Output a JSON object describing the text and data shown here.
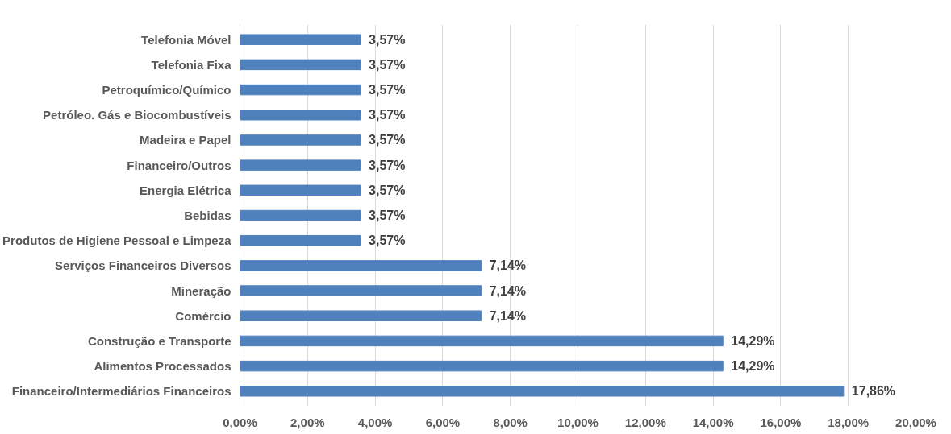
{
  "chart_data": {
    "type": "bar",
    "orientation": "horizontal",
    "categories": [
      "Telefonia Móvel",
      "Telefonia Fixa",
      "Petroquímico/Químico",
      "Petróleo. Gás e Biocombustíveis",
      "Madeira e Papel",
      "Financeiro/Outros",
      "Energia Elétrica",
      "Bebidas",
      "Produtos de Higiene Pessoal e Limpeza",
      "Serviços Financeiros Diversos",
      "Mineração",
      "Comércio",
      "Construção e Transporte",
      "Alimentos Processados",
      "Financeiro/Intermediários Financeiros"
    ],
    "values": [
      3.57,
      3.57,
      3.57,
      3.57,
      3.57,
      3.57,
      3.57,
      3.57,
      3.57,
      7.14,
      7.14,
      7.14,
      14.29,
      14.29,
      17.86
    ],
    "value_labels": [
      "3,57%",
      "3,57%",
      "3,57%",
      "3,57%",
      "3,57%",
      "3,57%",
      "3,57%",
      "3,57%",
      "3,57%",
      "7,14%",
      "7,14%",
      "7,14%",
      "14,29%",
      "14,29%",
      "17,86%"
    ],
    "color": "#4f81bd",
    "xlim": [
      0,
      20
    ],
    "xticks": [
      {
        "value": 0,
        "label": "0,00%"
      },
      {
        "value": 2,
        "label": "2,00%"
      },
      {
        "value": 4,
        "label": "4,00%"
      },
      {
        "value": 6,
        "label": "6,00%"
      },
      {
        "value": 8,
        "label": "8,00%"
      },
      {
        "value": 10,
        "label": "10,00%"
      },
      {
        "value": 12,
        "label": "12,00%"
      },
      {
        "value": 14,
        "label": "14,00%"
      },
      {
        "value": 16,
        "label": "16,00%"
      },
      {
        "value": 18,
        "label": "18,00%"
      },
      {
        "value": 20,
        "label": "20,00%"
      }
    ],
    "grid": "x"
  }
}
